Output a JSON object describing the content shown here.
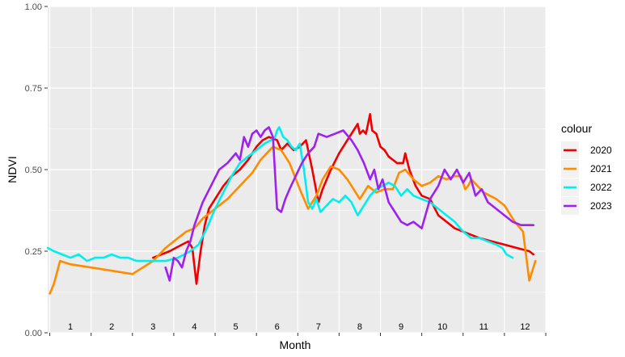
{
  "chart_data": {
    "type": "line",
    "xlabel": "Month",
    "ylabel": "NDVI",
    "xlim": [
      0.45,
      12.5
    ],
    "ylim": [
      0,
      1
    ],
    "yticks": [
      0,
      0.25,
      0.5,
      0.75,
      1
    ],
    "ytick_labels": [
      "0.00",
      "0.25",
      "0.50",
      "0.75",
      "1.00"
    ],
    "month_labels": [
      "1",
      "2",
      "3",
      "4",
      "5",
      "6",
      "7",
      "8",
      "9",
      "10",
      "11",
      "12"
    ],
    "grid": true,
    "legend_title": "colour",
    "legend_position": "right",
    "series": [
      {
        "name": "2020",
        "color": "#ee0000",
        "x": [
          3.0,
          3.4,
          3.7,
          3.85,
          3.95,
          4.05,
          4.15,
          4.25,
          4.35,
          4.5,
          4.7,
          4.9,
          5.1,
          5.3,
          5.5,
          5.65,
          5.8,
          6.0,
          6.1,
          6.25,
          6.4,
          6.55,
          6.7,
          6.85,
          7.0,
          7.1,
          7.3,
          7.5,
          7.7,
          7.85,
          7.95,
          8.0,
          8.08,
          8.15,
          8.25,
          8.3,
          8.4,
          8.5,
          8.6,
          8.7,
          8.9,
          9.05,
          9.1,
          9.2,
          9.35,
          9.5,
          9.7,
          9.9,
          10.1,
          10.3,
          10.5,
          10.7,
          10.9,
          11.2,
          11.5,
          11.8,
          12.1,
          12.2
        ],
        "y": [
          0.23,
          0.25,
          0.27,
          0.28,
          0.26,
          0.15,
          0.25,
          0.33,
          0.38,
          0.41,
          0.45,
          0.48,
          0.5,
          0.53,
          0.57,
          0.59,
          0.6,
          0.59,
          0.56,
          0.58,
          0.56,
          0.57,
          0.59,
          0.5,
          0.4,
          0.44,
          0.5,
          0.55,
          0.59,
          0.62,
          0.64,
          0.61,
          0.62,
          0.61,
          0.67,
          0.62,
          0.61,
          0.57,
          0.56,
          0.54,
          0.52,
          0.52,
          0.55,
          0.5,
          0.45,
          0.42,
          0.41,
          0.36,
          0.34,
          0.32,
          0.31,
          0.3,
          0.29,
          0.28,
          0.27,
          0.26,
          0.25,
          0.24
        ]
      },
      {
        "name": "2021",
        "color": "#ff8c00",
        "x": [
          0.5,
          0.6,
          0.75,
          1.0,
          1.5,
          2.0,
          2.5,
          3.0,
          3.3,
          3.6,
          3.8,
          4.0,
          4.2,
          4.5,
          4.8,
          5.1,
          5.4,
          5.6,
          5.75,
          5.9,
          6.1,
          6.3,
          6.55,
          6.75,
          6.95,
          7.1,
          7.3,
          7.5,
          7.7,
          7.85,
          8.0,
          8.2,
          8.4,
          8.6,
          8.8,
          8.95,
          9.1,
          9.3,
          9.5,
          9.7,
          9.9,
          10.1,
          10.3,
          10.45,
          10.55,
          10.62,
          10.7,
          11.0,
          11.3,
          11.5,
          11.75,
          11.95,
          12.1,
          12.25
        ],
        "y": [
          0.12,
          0.15,
          0.22,
          0.21,
          0.2,
          0.19,
          0.18,
          0.22,
          0.26,
          0.29,
          0.31,
          0.32,
          0.35,
          0.38,
          0.41,
          0.45,
          0.49,
          0.53,
          0.55,
          0.57,
          0.56,
          0.52,
          0.44,
          0.38,
          0.42,
          0.47,
          0.51,
          0.5,
          0.47,
          0.44,
          0.41,
          0.45,
          0.43,
          0.44,
          0.44,
          0.49,
          0.5,
          0.47,
          0.45,
          0.46,
          0.48,
          0.47,
          0.48,
          0.48,
          0.44,
          0.45,
          0.47,
          0.43,
          0.41,
          0.39,
          0.34,
          0.31,
          0.16,
          0.22
        ]
      },
      {
        "name": "2022",
        "color": "#00eeee",
        "x": [
          0.45,
          0.6,
          0.8,
          1.0,
          1.2,
          1.4,
          1.6,
          1.8,
          2.0,
          2.2,
          2.4,
          2.6,
          2.8,
          3.0,
          3.3,
          3.6,
          3.9,
          4.1,
          4.3,
          4.5,
          4.7,
          4.9,
          5.1,
          5.3,
          5.5,
          5.7,
          5.85,
          5.95,
          6.0,
          6.05,
          6.15,
          6.25,
          6.35,
          6.45,
          6.55,
          6.65,
          6.75,
          6.85,
          6.95,
          7.05,
          7.2,
          7.35,
          7.5,
          7.65,
          7.8,
          7.95,
          8.1,
          8.25,
          8.4,
          8.55,
          8.7,
          8.85,
          9.0,
          9.15,
          9.3,
          9.5,
          9.7,
          9.9,
          10.1,
          10.3,
          10.5,
          10.7,
          10.9,
          11.1,
          11.3,
          11.45,
          11.55,
          11.7
        ],
        "y": [
          0.26,
          0.25,
          0.24,
          0.23,
          0.24,
          0.22,
          0.23,
          0.23,
          0.24,
          0.23,
          0.23,
          0.22,
          0.22,
          0.22,
          0.22,
          0.23,
          0.25,
          0.27,
          0.32,
          0.38,
          0.43,
          0.48,
          0.52,
          0.54,
          0.56,
          0.58,
          0.59,
          0.6,
          0.62,
          0.63,
          0.6,
          0.59,
          0.57,
          0.56,
          0.58,
          0.5,
          0.4,
          0.38,
          0.41,
          0.37,
          0.39,
          0.41,
          0.4,
          0.42,
          0.4,
          0.36,
          0.39,
          0.42,
          0.44,
          0.45,
          0.46,
          0.45,
          0.42,
          0.44,
          0.42,
          0.41,
          0.4,
          0.38,
          0.36,
          0.34,
          0.31,
          0.29,
          0.29,
          0.28,
          0.27,
          0.26,
          0.24,
          0.23
        ]
      },
      {
        "name": "2023",
        "color": "#a020f0",
        "x": [
          3.3,
          3.4,
          3.5,
          3.6,
          3.7,
          3.8,
          3.9,
          4.0,
          4.2,
          4.4,
          4.6,
          4.8,
          5.0,
          5.1,
          5.2,
          5.3,
          5.4,
          5.5,
          5.6,
          5.7,
          5.8,
          5.9,
          6.0,
          6.1,
          6.2,
          6.3,
          6.45,
          6.6,
          6.75,
          6.9,
          7.0,
          7.2,
          7.4,
          7.6,
          7.8,
          7.95,
          8.1,
          8.25,
          8.35,
          8.45,
          8.55,
          8.7,
          8.85,
          9.0,
          9.15,
          9.3,
          9.5,
          9.7,
          9.9,
          10.05,
          10.2,
          10.35,
          10.5,
          10.65,
          10.8,
          10.95,
          11.1,
          11.3,
          11.5,
          11.7,
          11.9,
          12.1,
          12.2
        ],
        "y": [
          0.2,
          0.16,
          0.23,
          0.22,
          0.2,
          0.25,
          0.28,
          0.33,
          0.4,
          0.45,
          0.5,
          0.52,
          0.55,
          0.53,
          0.6,
          0.57,
          0.61,
          0.62,
          0.6,
          0.62,
          0.63,
          0.6,
          0.38,
          0.37,
          0.41,
          0.44,
          0.48,
          0.52,
          0.55,
          0.57,
          0.61,
          0.6,
          0.61,
          0.62,
          0.59,
          0.56,
          0.52,
          0.47,
          0.5,
          0.44,
          0.47,
          0.4,
          0.37,
          0.34,
          0.33,
          0.34,
          0.32,
          0.41,
          0.45,
          0.5,
          0.47,
          0.5,
          0.46,
          0.49,
          0.42,
          0.44,
          0.4,
          0.38,
          0.36,
          0.34,
          0.33,
          0.33,
          0.33
        ]
      }
    ]
  }
}
